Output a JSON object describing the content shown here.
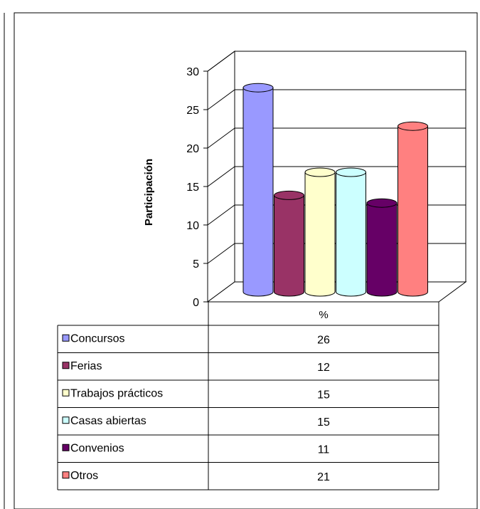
{
  "chart_data": {
    "type": "bar",
    "title": "",
    "ylabel": "Participación",
    "ylim": [
      0,
      30
    ],
    "y_ticks": [
      0,
      5,
      10,
      15,
      20,
      25,
      30
    ],
    "grid": true,
    "series_header": "%",
    "series": [
      {
        "name": "Concursos",
        "value": 26,
        "color": "#9999ff"
      },
      {
        "name": "Ferias",
        "value": 12,
        "color": "#993366"
      },
      {
        "name": "Trabajos prácticos",
        "value": 15,
        "color": "#ffffcc"
      },
      {
        "name": "Casas abiertas",
        "value": 15,
        "color": "#ccffff"
      },
      {
        "name": "Convenios",
        "value": 11,
        "color": "#660066"
      },
      {
        "name": "Otros",
        "value": 21,
        "color": "#ff8080"
      }
    ],
    "legend_placement": "data-table-bottom"
  }
}
